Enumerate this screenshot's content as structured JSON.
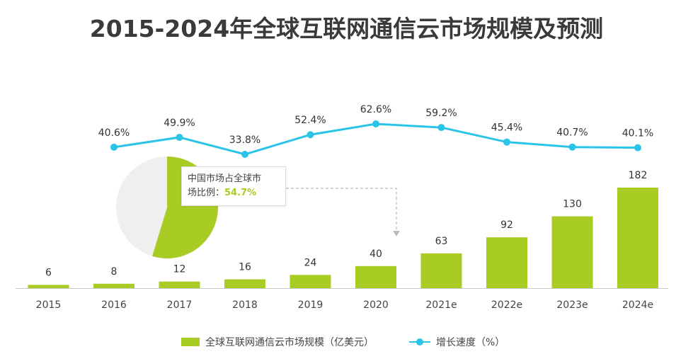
{
  "title": "2015-2024年全球互联网通信云市场规模及预测",
  "chart_data": {
    "type": "bar",
    "categories": [
      "2015",
      "2016",
      "2017",
      "2018",
      "2019",
      "2020",
      "2021e",
      "2022e",
      "2023e",
      "2024e"
    ],
    "series": [
      {
        "name": "全球互联网通信云市场规模（亿美元）",
        "type": "bar",
        "color": "#a8cc24",
        "values": [
          6,
          8,
          12,
          16,
          24,
          40,
          63,
          92,
          130,
          182
        ]
      },
      {
        "name": "增长速度（%）",
        "type": "line",
        "color": "#29c4e8",
        "values": [
          null,
          40.6,
          49.9,
          33.8,
          52.4,
          62.6,
          59.2,
          45.4,
          40.7,
          40.1
        ],
        "labels": [
          "",
          "40.6%",
          "49.9%",
          "33.8%",
          "52.4%",
          "62.6%",
          "59.2%",
          "45.4%",
          "40.7%",
          "40.1%"
        ]
      }
    ],
    "pie": {
      "label_prefix": "中国市场占全球市场比例：",
      "label_line1": "中国市场占全球市",
      "label_line2": "场比例：",
      "value": 54.7,
      "value_text": "54.7%",
      "colors": {
        "china": "#a8cc24",
        "rest": "#efefef"
      }
    },
    "ylim": [
      0,
      182
    ],
    "line_ylim": [
      33.8,
      62.6
    ],
    "legend_position": "bottom"
  },
  "legend": {
    "bar_label": "全球互联网通信云市场规模（亿美元）",
    "line_label": "增长速度（%）"
  }
}
